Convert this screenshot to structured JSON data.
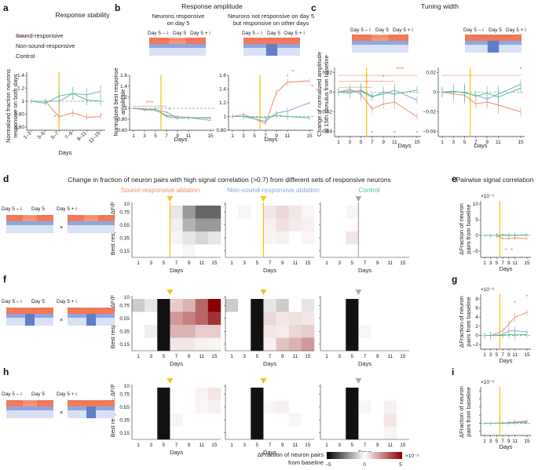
{
  "colors": {
    "sound": "#f08a6e",
    "nonsound": "#8aa4d6",
    "control": "#57c08d",
    "yellow": "#f5c518",
    "grey": "#aaaaaa",
    "cortex_top": "#f07a5a",
    "cortex_mid": "#8fa6dd",
    "cortex_bottom": "#d9e1f5"
  },
  "panels": {
    "a": {
      "letter": "a",
      "title": "Response stability",
      "legend": [
        "Sound-responsive",
        "Non-sound-responsive",
        "Control"
      ],
      "ylabel": [
        "Normalized fraction neurons",
        "responsive on both days"
      ],
      "xlabel": "Days"
    },
    "b": {
      "letter": "b",
      "title": "Response amplitude",
      "sub1": [
        "Neurons responsive",
        "on day 5"
      ],
      "sub2": [
        "Neurons not responsive on day 5",
        "but responsive on other days"
      ],
      "ylabel": [
        "Normalized best response",
        "amplitude"
      ],
      "xlabel": "Days"
    },
    "c": {
      "letter": "c",
      "title": "Tuning width",
      "ylabel": [
        "Change of normalized amplitude",
        "at 15th stimulus from baseline"
      ],
      "xlabel": "Days"
    },
    "d": {
      "letter": "d",
      "title": "Change in fraction of neuron pairs with high signal correlation (>0.7) from different sets of responsive neurons",
      "col_titles": [
        "Sound-responsive ablation",
        "Non-sound-responsive ablation",
        "Control"
      ]
    },
    "e": {
      "letter": "e",
      "title": "Pairwise signal correlation",
      "exp": "×10⁻³",
      "ylabel": [
        "ΔFraction of neuron",
        "pairs from baseline"
      ],
      "xlabel": "Days"
    },
    "f": {
      "letter": "f"
    },
    "g": {
      "letter": "g",
      "exp": "×10⁻³",
      "ylabel": [
        "ΔFraction of neuron",
        "pairs from baseline"
      ],
      "xlabel": "Days"
    },
    "h": {
      "letter": "h"
    },
    "i": {
      "letter": "i",
      "exp": "×10⁻³",
      "ylabel": [
        "ΔFraction of neuron",
        "pairs from baseline"
      ],
      "xlabel": "Days"
    },
    "heat": {
      "ylabel": "Best response, ΔF/F",
      "xlabel": "Days"
    },
    "cbar": {
      "label": [
        "ΔFraction of neuron pairs",
        "from baseline"
      ],
      "exp": "×10⁻³"
    },
    "diagram": {
      "day_labels": [
        "Day 5 – i",
        "Day 5",
        "Day 5 + i"
      ],
      "times": "×"
    },
    "star": "*",
    "stars3": "***"
  },
  "chart_data": [
    {
      "id": "a",
      "type": "line",
      "title": "Response stability",
      "xlabel": "Days",
      "ylabel": "Normalized fraction neurons responsive on both days",
      "categories": [
        "1–3",
        "3–5",
        "5–7",
        "7–9",
        "9–11",
        "11–15"
      ],
      "yticks": [
        0.6,
        0.8,
        1.0,
        1.2,
        1.4
      ],
      "ylim": [
        0.55,
        1.45
      ],
      "series": [
        {
          "name": "Sound-responsive",
          "values": [
            1.0,
            1.0,
            0.76,
            0.82,
            0.75,
            0.76
          ],
          "err": [
            0.03,
            0.04,
            0.1,
            0.06,
            0.05,
            0.04
          ]
        },
        {
          "name": "Non-sound-responsive",
          "values": [
            1.0,
            1.0,
            1.0,
            1.12,
            1.1,
            1.15
          ],
          "err": [
            0.03,
            0.04,
            0.12,
            0.1,
            0.1,
            0.1
          ]
        },
        {
          "name": "Control",
          "values": [
            1.0,
            0.97,
            1.08,
            1.12,
            1.02,
            1.0
          ],
          "err": [
            0.03,
            0.04,
            0.08,
            0.1,
            0.08,
            0.07
          ]
        }
      ],
      "annotations": [
        "*",
        "*",
        "*"
      ]
    },
    {
      "id": "b1",
      "type": "line",
      "title": "Neurons responsive on day 5",
      "xlabel": "Days",
      "x": [
        1,
        3,
        5,
        7,
        9,
        11,
        15
      ],
      "xticks": [
        1,
        3,
        5,
        7,
        9,
        11,
        15
      ],
      "yticks": [
        0.6,
        0.8,
        1.0,
        1.2,
        1.4,
        1.6
      ],
      "ylim": [
        0.6,
        1.6
      ],
      "series": [
        {
          "name": "Sound-responsive",
          "values": [
            1.0,
            0.97,
            0.97,
            0.87,
            0.85,
            0.83,
            0.82
          ]
        },
        {
          "name": "Non-sound-responsive",
          "values": [
            1.0,
            0.98,
            0.97,
            0.93,
            0.82,
            0.83,
            0.78
          ]
        },
        {
          "name": "Control",
          "values": [
            1.0,
            0.98,
            0.98,
            0.85,
            0.82,
            0.83,
            0.83
          ]
        }
      ],
      "annotations": [
        "***",
        "*"
      ]
    },
    {
      "id": "b2",
      "type": "line",
      "title": "Neurons not responsive on day 5 but responsive on other days",
      "xlabel": "Days",
      "x": [
        1,
        3,
        5,
        7,
        9,
        11,
        15
      ],
      "xticks": [
        1,
        3,
        5,
        7,
        9,
        11,
        15
      ],
      "yticks": [
        0.8,
        1.0,
        1.2,
        1.4,
        1.6
      ],
      "ylim": [
        0.8,
        1.6
      ],
      "series": [
        {
          "name": "Sound-responsive",
          "values": [
            1.0,
            1.03,
            null,
            0.9,
            1.35,
            1.5,
            1.52
          ]
        },
        {
          "name": "Non-sound-responsive",
          "values": [
            1.0,
            1.0,
            null,
            0.93,
            1.05,
            1.08,
            1.2
          ]
        },
        {
          "name": "Control",
          "values": [
            1.0,
            1.0,
            null,
            0.98,
            1.02,
            1.0,
            0.98
          ]
        }
      ],
      "annotations": [
        "*",
        "*",
        "*"
      ]
    },
    {
      "id": "c1",
      "type": "line",
      "xlabel": "Days",
      "x": [
        1,
        3,
        5,
        7,
        9,
        11,
        15
      ],
      "xticks": [
        1,
        3,
        5,
        7,
        9,
        11,
        15
      ],
      "yticks": [
        -0.04,
        -0.02,
        0,
        0.02
      ],
      "ylim": [
        -0.045,
        0.025
      ],
      "series": [
        {
          "name": "Sound-responsive",
          "values": [
            0.0,
            0.003,
            -0.002,
            -0.017,
            -0.012,
            -0.01,
            -0.025
          ]
        },
        {
          "name": "Non-sound-responsive",
          "values": [
            0.0,
            -0.001,
            0.002,
            -0.004,
            -0.002,
            0.002,
            -0.008
          ]
        },
        {
          "name": "Control",
          "values": [
            0.0,
            0.001,
            0.001,
            -0.005,
            0.0,
            -0.002,
            0.002
          ]
        }
      ],
      "annotations": [
        "*",
        "*",
        "***",
        "*",
        "*",
        "*"
      ]
    },
    {
      "id": "c2",
      "type": "line",
      "xlabel": "Days",
      "x": [
        1,
        3,
        5,
        7,
        9,
        11,
        15
      ],
      "xticks": [
        1,
        3,
        5,
        7,
        9,
        11,
        15
      ],
      "yticks": [
        -0.04,
        -0.02,
        0,
        0.02
      ],
      "ylim": [
        -0.045,
        0.025
      ],
      "series": [
        {
          "name": "Sound-responsive",
          "values": [
            0.0,
            -0.002,
            -0.003,
            -0.012,
            -0.01,
            -0.013,
            -0.02
          ]
        },
        {
          "name": "Non-sound-responsive",
          "values": [
            0.0,
            0.001,
            -0.001,
            -0.003,
            -0.007,
            -0.002,
            0.008
          ]
        },
        {
          "name": "Control",
          "values": [
            0.0,
            0.0,
            0.0,
            -0.004,
            -0.001,
            -0.005,
            0.004
          ]
        }
      ],
      "annotations": [
        "*"
      ]
    },
    {
      "id": "heatmaps",
      "type": "heatmap",
      "rows": [
        "0.75",
        "0.55",
        "0.35",
        "0.15"
      ],
      "yticklabels": [
        "10",
        "0.75",
        "0.55",
        "0.35",
        "0.15"
      ],
      "columns": [
        1,
        3,
        5,
        7,
        9,
        11,
        15
      ],
      "xticks": [
        1,
        3,
        5,
        7,
        9,
        11,
        15
      ],
      "colorscale": {
        "min": -5,
        "max": 5,
        "unit": "×10⁻³",
        "ticks": [
          -5,
          0,
          5
        ]
      },
      "maps": [
        {
          "row": "d",
          "group": "Sound-responsive ablation",
          "values": [
            [
              0,
              0,
              0,
              -0.5,
              -2,
              -3,
              -3
            ],
            [
              0,
              0,
              0,
              -0.3,
              -1.5,
              -2,
              -2
            ],
            [
              0,
              0,
              0,
              0.2,
              -0.5,
              -0.8,
              -0.5
            ],
            [
              0,
              0,
              0,
              0,
              0.2,
              0,
              0
            ]
          ]
        },
        {
          "row": "d",
          "group": "Non-sound-responsive ablation",
          "values": [
            [
              0,
              0.2,
              0,
              0.5,
              0.8,
              0.5,
              0.2
            ],
            [
              0,
              0,
              0,
              0.3,
              0.6,
              0.4,
              0.3
            ],
            [
              0,
              0,
              0,
              0.2,
              0.3,
              0,
              0.2
            ],
            [
              0,
              0,
              0,
              0,
              0,
              0,
              0
            ]
          ]
        },
        {
          "row": "d",
          "group": "Control",
          "values": [
            [
              0,
              0,
              0.2,
              0,
              0,
              0,
              0
            ],
            [
              0,
              0,
              0,
              0,
              0,
              0,
              0
            ],
            [
              0,
              0,
              0.5,
              0,
              0,
              0,
              0
            ],
            [
              0,
              0,
              0,
              0,
              0,
              0,
              0
            ]
          ]
        },
        {
          "row": "f",
          "group": "Sound-responsive ablation",
          "values": [
            [
              -1,
              -0.5,
              null,
              1,
              1.5,
              3,
              5
            ],
            [
              0,
              0,
              null,
              2,
              2.5,
              3,
              4
            ],
            [
              0,
              -0.3,
              null,
              1.5,
              1.5,
              1,
              1
            ],
            [
              0,
              0,
              null,
              0.5,
              0.5,
              0.3,
              0.2
            ]
          ]
        },
        {
          "row": "f",
          "group": "Non-sound-responsive ablation",
          "values": [
            [
              -1,
              0,
              null,
              -0.5,
              -1,
              0,
              -0.5
            ],
            [
              0,
              0,
              null,
              0.8,
              0.5,
              0.6,
              0.5
            ],
            [
              0,
              0,
              null,
              0.5,
              0.4,
              0.8,
              1
            ],
            [
              0,
              0,
              null,
              0.3,
              1.2,
              1.5,
              2
            ]
          ]
        },
        {
          "row": "f",
          "group": "Control",
          "values": [
            [
              0,
              0,
              null,
              0,
              0,
              0,
              0
            ],
            [
              0,
              0,
              null,
              0,
              0,
              0,
              0
            ],
            [
              0,
              0,
              null,
              0.2,
              0,
              0,
              0
            ],
            [
              0,
              0,
              null,
              0,
              0,
              0,
              0
            ]
          ]
        },
        {
          "row": "h",
          "group": "Sound-responsive ablation",
          "values": [
            [
              0,
              0,
              null,
              0,
              0,
              0.2,
              0.5
            ],
            [
              0,
              0,
              null,
              0,
              0,
              0.2,
              0.3
            ],
            [
              0,
              0,
              null,
              0.2,
              0,
              0,
              0
            ],
            [
              0,
              0,
              null,
              0,
              0,
              0,
              0
            ]
          ]
        },
        {
          "row": "h",
          "group": "Non-sound-responsive ablation",
          "values": [
            [
              0,
              0,
              null,
              0,
              0,
              0,
              0
            ],
            [
              0,
              0,
              null,
              0.2,
              0.3,
              0,
              0
            ],
            [
              0,
              0,
              null,
              0,
              0,
              0.2,
              0
            ],
            [
              0,
              0,
              null,
              0,
              0,
              0,
              0
            ]
          ]
        },
        {
          "row": "h",
          "group": "Control",
          "values": [
            [
              0,
              0,
              null,
              0,
              0,
              0,
              0
            ],
            [
              0,
              0,
              null,
              0.2,
              0,
              0.3,
              0
            ],
            [
              0,
              0,
              null,
              0,
              0,
              0.5,
              0
            ],
            [
              0,
              0,
              null,
              0,
              0,
              0.2,
              0
            ]
          ]
        }
      ]
    },
    {
      "id": "e",
      "type": "line",
      "title": "Pairwise signal correlation",
      "xlabel": "Days",
      "ylabel": "ΔFraction of neuron pairs from baseline",
      "x": [
        1,
        3,
        5,
        7,
        9,
        11,
        15
      ],
      "xticks": [
        1,
        3,
        5,
        7,
        9,
        11,
        15
      ],
      "yticks": [
        -5,
        0,
        5,
        10
      ],
      "ylim": [
        -7,
        11
      ],
      "series": [
        {
          "name": "Sound-responsive",
          "values": [
            0,
            0,
            0,
            -1,
            -1,
            -0.8,
            -1
          ]
        },
        {
          "name": "Non-sound-responsive",
          "values": [
            0,
            0,
            0,
            0.2,
            0.1,
            0,
            0.2
          ]
        },
        {
          "name": "Control",
          "values": [
            0,
            0,
            0,
            0.1,
            0,
            0.1,
            0
          ]
        }
      ],
      "annotations": [
        "*",
        "*"
      ]
    },
    {
      "id": "g",
      "type": "line",
      "xlabel": "Days",
      "ylabel": "ΔFraction of neuron pairs from baseline",
      "x": [
        1,
        3,
        5,
        7,
        9,
        11,
        15
      ],
      "xticks": [
        1,
        3,
        5,
        7,
        9,
        11,
        15
      ],
      "yticks": [
        -2,
        0,
        2,
        4,
        6,
        8
      ],
      "ylim": [
        -3,
        9
      ],
      "series": [
        {
          "name": "Sound-responsive",
          "values": [
            0,
            0,
            null,
            1,
            2.5,
            4,
            5
          ]
        },
        {
          "name": "Non-sound-responsive",
          "values": [
            0,
            0,
            null,
            0.2,
            1,
            1,
            0.8
          ]
        },
        {
          "name": "Control",
          "values": [
            0,
            0,
            null,
            0,
            0.2,
            0.1,
            0.2
          ]
        }
      ],
      "annotations": [
        "*",
        "*"
      ]
    },
    {
      "id": "i",
      "type": "line",
      "xlabel": "Days",
      "ylabel": "ΔFraction of neuron pairs from baseline",
      "x": [
        1,
        3,
        5,
        7,
        9,
        11,
        15
      ],
      "xticks": [
        1,
        3,
        5,
        7,
        9,
        11,
        15
      ],
      "yticks": [
        -2,
        0,
        2,
        4,
        6,
        8
      ],
      "ylim": [
        -3,
        9
      ],
      "series": [
        {
          "name": "Sound-responsive",
          "values": [
            0,
            0,
            null,
            0,
            0.2,
            0.3,
            0.6
          ]
        },
        {
          "name": "Non-sound-responsive",
          "values": [
            0,
            0,
            null,
            0.1,
            0,
            0.2,
            0.1
          ]
        },
        {
          "name": "Control",
          "values": [
            0,
            0,
            null,
            0,
            0.1,
            0.2,
            0.3
          ]
        }
      ]
    }
  ]
}
